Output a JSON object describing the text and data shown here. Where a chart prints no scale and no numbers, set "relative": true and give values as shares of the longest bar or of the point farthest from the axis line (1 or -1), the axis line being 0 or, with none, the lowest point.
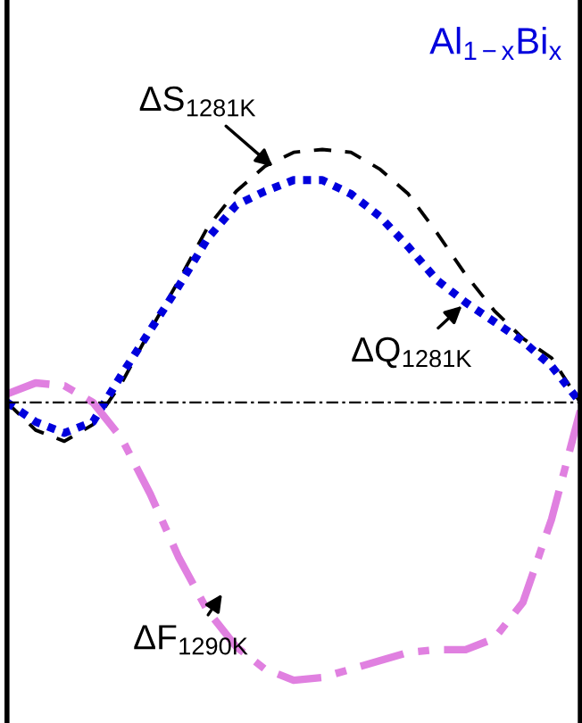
{
  "chart_data": {
    "type": "line",
    "relative": true,
    "categories": [
      null,
      null,
      null,
      null,
      null,
      null,
      null,
      null,
      null,
      null,
      null,
      null,
      null,
      null,
      null,
      null,
      null,
      null,
      null,
      null,
      null
    ],
    "series": [
      {
        "color": "#000000",
        "line_style": "dashed",
        "values": [
          0,
          -0.1,
          -0.14,
          -0.08,
          0.07,
          0.26,
          0.44,
          0.63,
          0.76,
          0.85,
          0.9,
          0.91,
          0.9,
          0.84,
          0.75,
          0.61,
          0.46,
          0.33,
          0.23,
          0.16,
          0
        ]
      },
      {
        "color": "#0000dd",
        "line_style": "dotted",
        "values": [
          0,
          -0.07,
          -0.11,
          -0.07,
          0.1,
          0.26,
          0.42,
          0.59,
          0.71,
          0.76,
          0.8,
          0.8,
          0.75,
          0.67,
          0.56,
          0.44,
          0.36,
          0.29,
          0.22,
          0.13,
          0
        ]
      },
      {
        "color": "#e080e0",
        "line_style": "dashdot",
        "values": [
          0.03,
          0.07,
          0.06,
          0,
          -0.13,
          -0.33,
          -0.56,
          -0.75,
          -0.88,
          -0.96,
          -1.0,
          -0.99,
          -0.96,
          -0.93,
          -0.9,
          -0.89,
          -0.89,
          -0.85,
          -0.72,
          -0.42,
          -0.03
        ]
      }
    ],
    "ref_lines": [
      {
        "axis": "y",
        "value": 0,
        "color": "#000000",
        "line_style": "dashdot"
      }
    ],
    "annotations": [
      "Al$_{1−x}$Bi$_{x}$",
      "ΔS$_{1281K}$",
      "ΔQ$_{1281K}$",
      "ΔF$_{1290K}$"
    ],
    "legend": false
  }
}
